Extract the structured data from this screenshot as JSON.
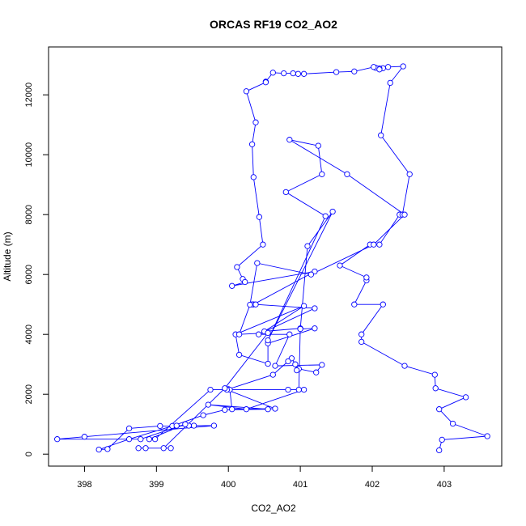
{
  "chart_data": {
    "type": "line",
    "title": "ORCAS RF19 CO2_AO2",
    "xlabel": "CO2_AO2",
    "ylabel": "Altitude (m)",
    "xlim": [
      397.5,
      403.8
    ],
    "ylim": [
      -400,
      13600
    ],
    "xticks": [
      398,
      399,
      400,
      401,
      402,
      403
    ],
    "yticks": [
      0,
      2000,
      4000,
      6000,
      8000,
      10000,
      12000
    ],
    "grid": false,
    "series_color": "#0000ff",
    "marker": "open-circle",
    "series": [
      {
        "points": [
          [
            402.93,
            130
          ],
          [
            402.97,
            480
          ],
          [
            403.6,
            600
          ],
          [
            403.12,
            1020
          ],
          [
            402.93,
            1500
          ],
          [
            403.3,
            1900
          ],
          [
            402.88,
            2200
          ],
          [
            402.87,
            2650
          ],
          [
            402.45,
            2950
          ],
          [
            401.85,
            3750
          ],
          [
            401.85,
            4000
          ],
          [
            402.15,
            5000
          ],
          [
            401.75,
            5000
          ],
          [
            401.92,
            5800
          ],
          [
            401.92,
            5900
          ],
          [
            401.55,
            6300
          ],
          [
            401.97,
            7000
          ],
          [
            402.1,
            7000
          ],
          [
            402.38,
            8000
          ],
          [
            402.42,
            8000
          ],
          [
            402.52,
            9350
          ],
          [
            402.12,
            10650
          ],
          [
            402.25,
            12400
          ],
          [
            402.43,
            12950
          ],
          [
            402.22,
            12930
          ],
          [
            402.15,
            12890
          ],
          [
            402.1,
            12880
          ],
          [
            402.05,
            12900
          ],
          [
            402.1,
            12850
          ],
          [
            402.02,
            12930
          ],
          [
            401.75,
            12780
          ],
          [
            401.5,
            12760
          ],
          [
            401.05,
            12700
          ],
          [
            400.97,
            12700
          ],
          [
            400.9,
            12720
          ],
          [
            400.77,
            12720
          ],
          [
            400.62,
            12740
          ],
          [
            400.52,
            12440
          ],
          [
            400.52,
            12420
          ],
          [
            400.25,
            12120
          ],
          [
            400.38,
            11080
          ],
          [
            400.33,
            10350
          ],
          [
            400.35,
            9250
          ],
          [
            400.43,
            7920
          ],
          [
            400.48,
            7000
          ],
          [
            400.12,
            6250
          ],
          [
            400.2,
            5850
          ],
          [
            400.23,
            5750
          ],
          [
            400.05,
            5620
          ],
          [
            401.2,
            6100
          ],
          [
            400.35,
            5000
          ],
          [
            400.33,
            5000
          ],
          [
            400.38,
            5000
          ],
          [
            401.2,
            4870
          ],
          [
            400.42,
            4000
          ],
          [
            400.85,
            4000
          ],
          [
            400.65,
            2950
          ],
          [
            401.3,
            2980
          ],
          [
            401.22,
            2730
          ],
          [
            400.98,
            2850
          ],
          [
            400.95,
            2800
          ],
          [
            400.93,
            3000
          ],
          [
            400.88,
            3200
          ],
          [
            400.83,
            3100
          ],
          [
            400.62,
            2650
          ],
          [
            400.0,
            2170
          ],
          [
            400.02,
            2150
          ],
          [
            400.05,
            1500
          ],
          [
            400.65,
            1520
          ],
          [
            399.98,
            2150
          ],
          [
            400.83,
            2150
          ],
          [
            401.05,
            2150
          ],
          [
            400.25,
            1500
          ],
          [
            399.72,
            1650
          ],
          [
            400.55,
            1500
          ],
          [
            399.95,
            1480
          ],
          [
            399.65,
            1300
          ],
          [
            399.22,
            940
          ],
          [
            398.62,
            500
          ],
          [
            398.2,
            150
          ],
          [
            398.32,
            170
          ],
          [
            398.62,
            860
          ],
          [
            399.05,
            940
          ],
          [
            399.52,
            950
          ],
          [
            399.28,
            950
          ],
          [
            399.45,
            950
          ],
          [
            399.8,
            950
          ],
          [
            398.0,
            580
          ],
          [
            397.62,
            500
          ],
          [
            398.78,
            500
          ],
          [
            399.4,
            1000
          ],
          [
            398.9,
            500
          ],
          [
            398.98,
            500
          ],
          [
            399.75,
            2150
          ],
          [
            400.98,
            2150
          ],
          [
            401.0,
            4200
          ],
          [
            400.5,
            4100
          ],
          [
            401.05,
            4950
          ],
          [
            400.1,
            4000
          ],
          [
            400.15,
            3320
          ],
          [
            400.55,
            3020
          ],
          [
            400.55,
            3700
          ],
          [
            401.2,
            4200
          ],
          [
            401.0,
            4180
          ],
          [
            401.1,
            6950
          ],
          [
            401.45,
            8100
          ],
          [
            400.55,
            3800
          ],
          [
            401.35,
            7950
          ],
          [
            400.8,
            8750
          ],
          [
            401.3,
            9350
          ],
          [
            401.25,
            10300
          ],
          [
            400.85,
            10500
          ],
          [
            401.65,
            9350
          ],
          [
            402.45,
            8000
          ],
          [
            402.02,
            7000
          ],
          [
            401.15,
            6000
          ],
          [
            400.4,
            6380
          ],
          [
            400.3,
            4990
          ],
          [
            400.15,
            4000
          ],
          [
            400.55,
            4050
          ],
          [
            399.95,
            2200
          ],
          [
            399.1,
            200
          ],
          [
            398.85,
            200
          ],
          [
            398.75,
            200
          ],
          [
            399.2,
            200
          ]
        ]
      }
    ]
  }
}
